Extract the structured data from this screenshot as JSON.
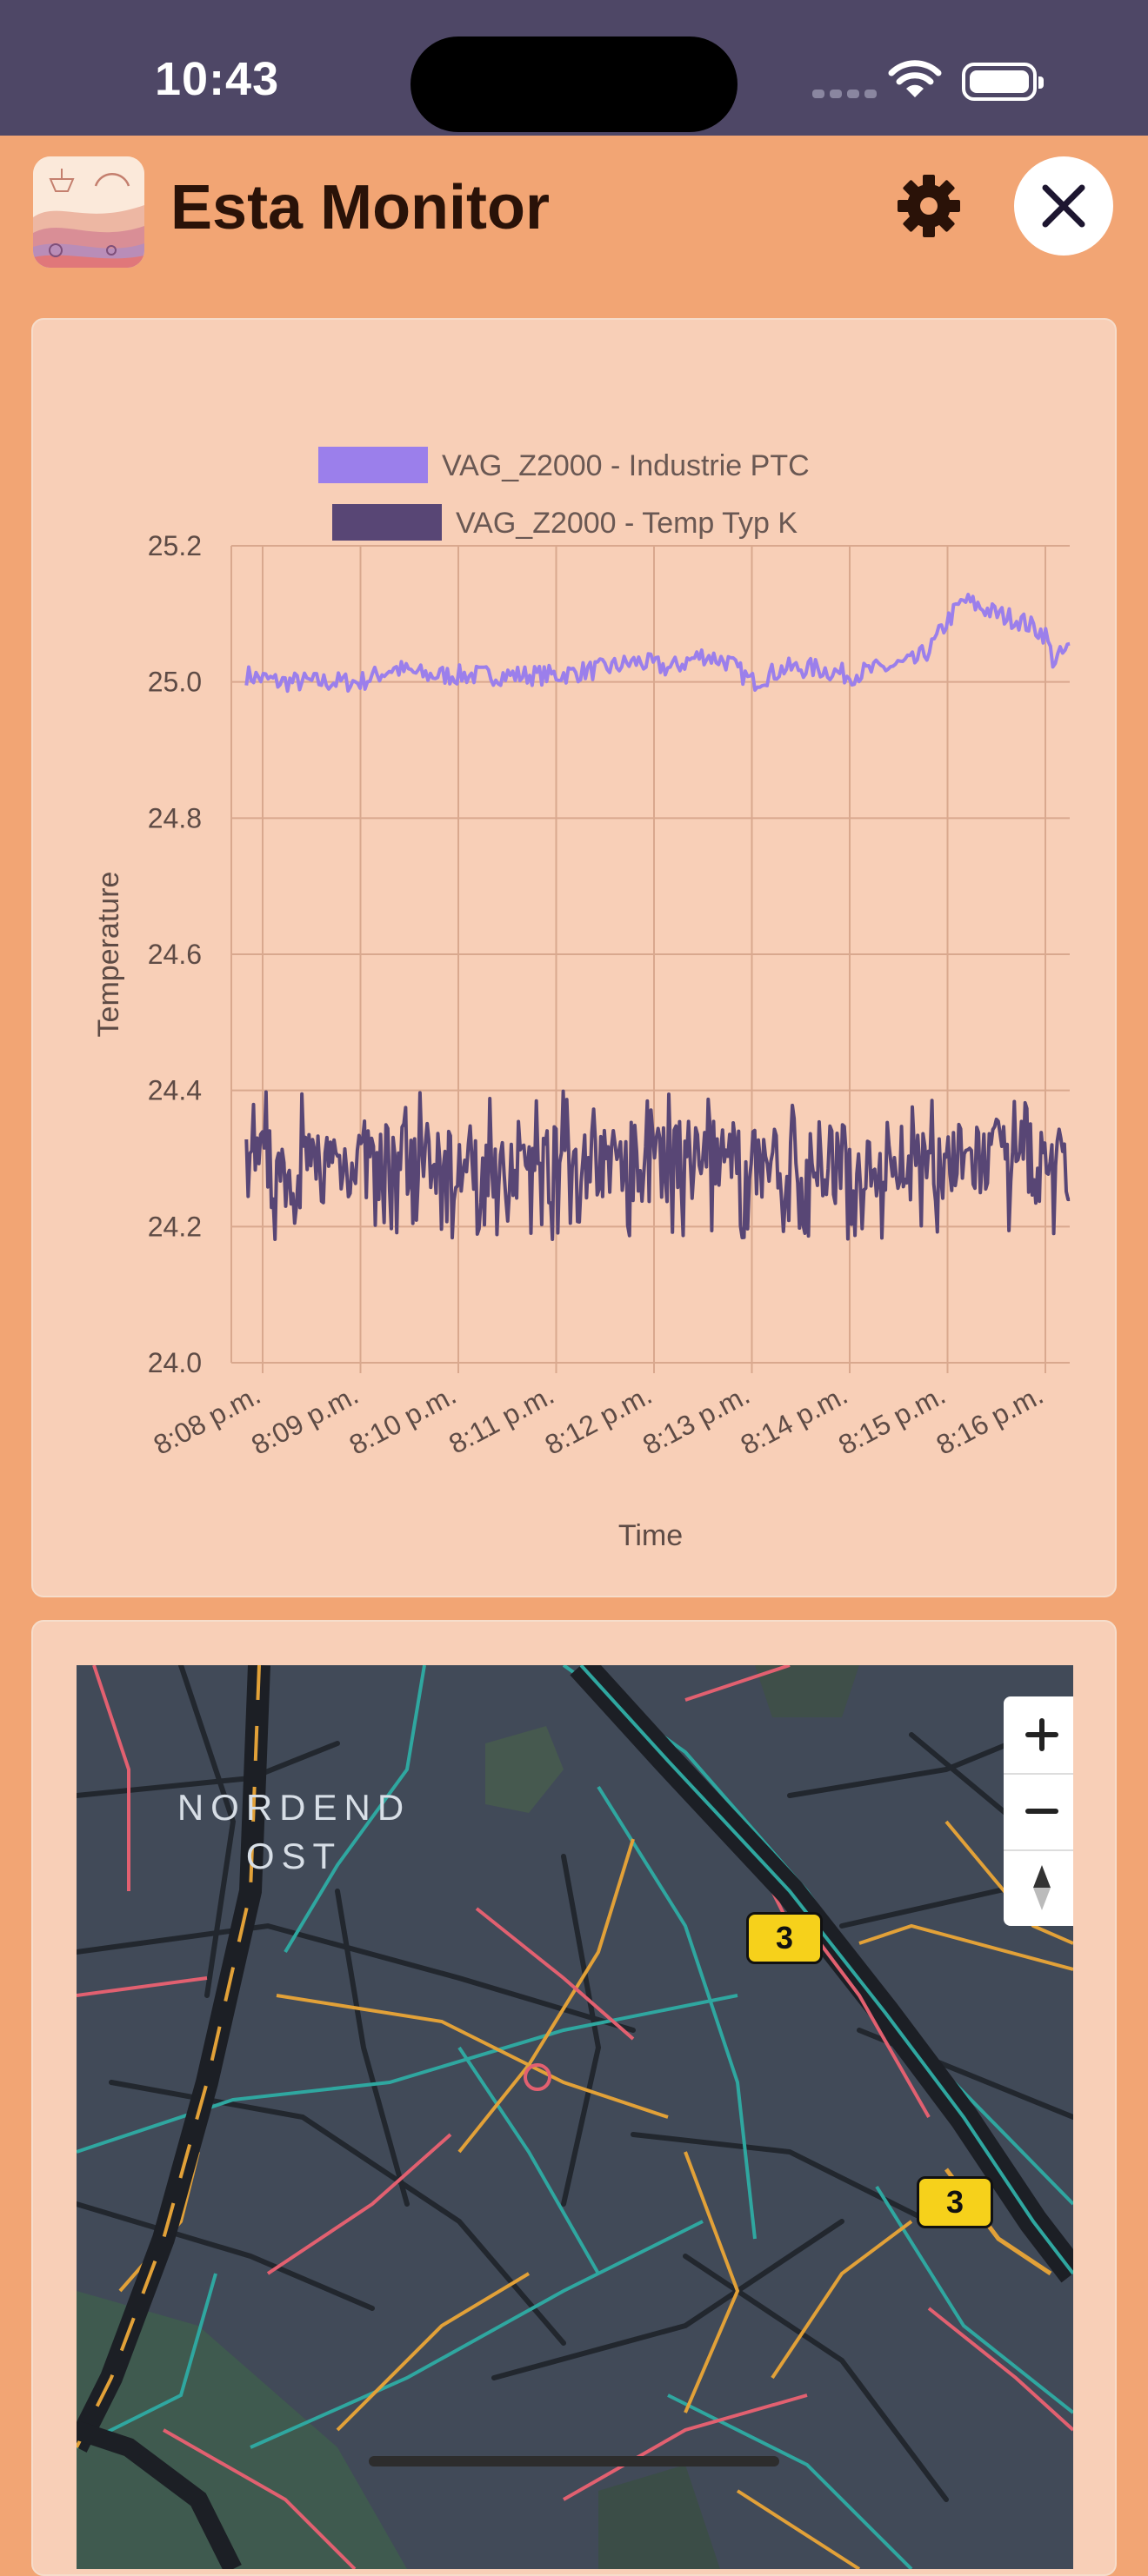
{
  "status_bar": {
    "time": "10:43"
  },
  "header": {
    "title": "Esta Monitor"
  },
  "chart_data": {
    "type": "line",
    "title": "",
    "xlabel": "Time",
    "ylabel": "Temperature",
    "ylim": [
      24.0,
      25.2
    ],
    "y_ticks": [
      "24.0",
      "24.2",
      "24.4",
      "24.6",
      "24.8",
      "25.0",
      "25.2"
    ],
    "x_ticks": [
      "8:08 p.m.",
      "8:09 p.m.",
      "8:10 p.m.",
      "8:11 p.m.",
      "8:12 p.m.",
      "8:13 p.m.",
      "8:14 p.m.",
      "8:15 p.m.",
      "8:16 p.m."
    ],
    "legend_position": "top-center",
    "grid": true,
    "series": [
      {
        "name": "VAG_Z2000 - Industrie PTC",
        "color": "#9B7FEB",
        "approx_trend": [
          [
            "8:07:50 p.m.",
            25.01
          ],
          [
            "8:08:10 p.m.",
            25.0
          ],
          [
            "8:08:30 p.m.",
            25.0
          ],
          [
            "8:09:00 p.m.",
            25.0
          ],
          [
            "8:09:20 p.m.",
            25.02
          ],
          [
            "8:09:40 p.m.",
            25.01
          ],
          [
            "8:10:00 p.m.",
            25.01
          ],
          [
            "8:10:30 p.m.",
            25.01
          ],
          [
            "8:11:00 p.m.",
            25.01
          ],
          [
            "8:11:30 p.m.",
            25.02
          ],
          [
            "8:11:50 p.m.",
            25.03
          ],
          [
            "8:12:10 p.m.",
            25.02
          ],
          [
            "8:12:30 p.m.",
            25.04
          ],
          [
            "8:12:45 p.m.",
            25.03
          ],
          [
            "8:13:00 p.m.",
            25.0
          ],
          [
            "8:13:20 p.m.",
            25.02
          ],
          [
            "8:13:40 p.m.",
            25.02
          ],
          [
            "8:14:00 p.m.",
            25.01
          ],
          [
            "8:14:20 p.m.",
            25.02
          ],
          [
            "8:14:40 p.m.",
            25.03
          ],
          [
            "8:14:50 p.m.",
            25.05
          ],
          [
            "8:15:00 p.m.",
            25.09
          ],
          [
            "8:15:10 p.m.",
            25.12
          ],
          [
            "8:15:20 p.m.",
            25.11
          ],
          [
            "8:15:30 p.m.",
            25.1
          ],
          [
            "8:15:45 p.m.",
            25.09
          ],
          [
            "8:16:00 p.m.",
            25.07
          ],
          [
            "8:16:05 p.m.",
            25.03
          ],
          [
            "8:16:15 p.m.",
            25.05
          ]
        ]
      },
      {
        "name": "VAG_Z2000 - Temp Typ K",
        "color": "#584675",
        "approx_trend": [
          [
            "8:07:50 p.m.",
            24.3
          ],
          [
            "8:08:10 p.m.",
            24.28
          ],
          [
            "8:08:30 p.m.",
            24.29
          ],
          [
            "8:09:00 p.m.",
            24.3
          ],
          [
            "8:09:20 p.m.",
            24.29
          ],
          [
            "8:09:40 p.m.",
            24.3
          ],
          [
            "8:10:00 p.m.",
            24.29
          ],
          [
            "8:10:30 p.m.",
            24.3
          ],
          [
            "8:11:00 p.m.",
            24.29
          ],
          [
            "8:11:30 p.m.",
            24.3
          ],
          [
            "8:12:00 p.m.",
            24.29
          ],
          [
            "8:12:30 p.m.",
            24.3
          ],
          [
            "8:13:00 p.m.",
            24.29
          ],
          [
            "8:13:30 p.m.",
            24.3
          ],
          [
            "8:14:00 p.m.",
            24.29
          ],
          [
            "8:14:30 p.m.",
            24.3
          ],
          [
            "8:15:00 p.m.",
            24.29
          ],
          [
            "8:15:30 p.m.",
            24.3
          ],
          [
            "8:16:00 p.m.",
            24.29
          ],
          [
            "8:16:15 p.m.",
            24.3
          ]
        ],
        "approx_band": [
          24.18,
          24.4
        ]
      }
    ]
  },
  "map": {
    "district_label_line1": "NORDEND",
    "district_label_line2": "OST",
    "route_badges": [
      "3",
      "3"
    ],
    "zoom_in_label": "+",
    "zoom_out_label": "−"
  },
  "icons": {
    "settings": "gear-icon",
    "close": "close-icon",
    "compass": "compass-icon"
  },
  "colors": {
    "status_bar_bg": "#4E4766",
    "page_bg": "#F2A574",
    "card_bg": "#F8CFB7",
    "map_bg": "#414A58"
  }
}
